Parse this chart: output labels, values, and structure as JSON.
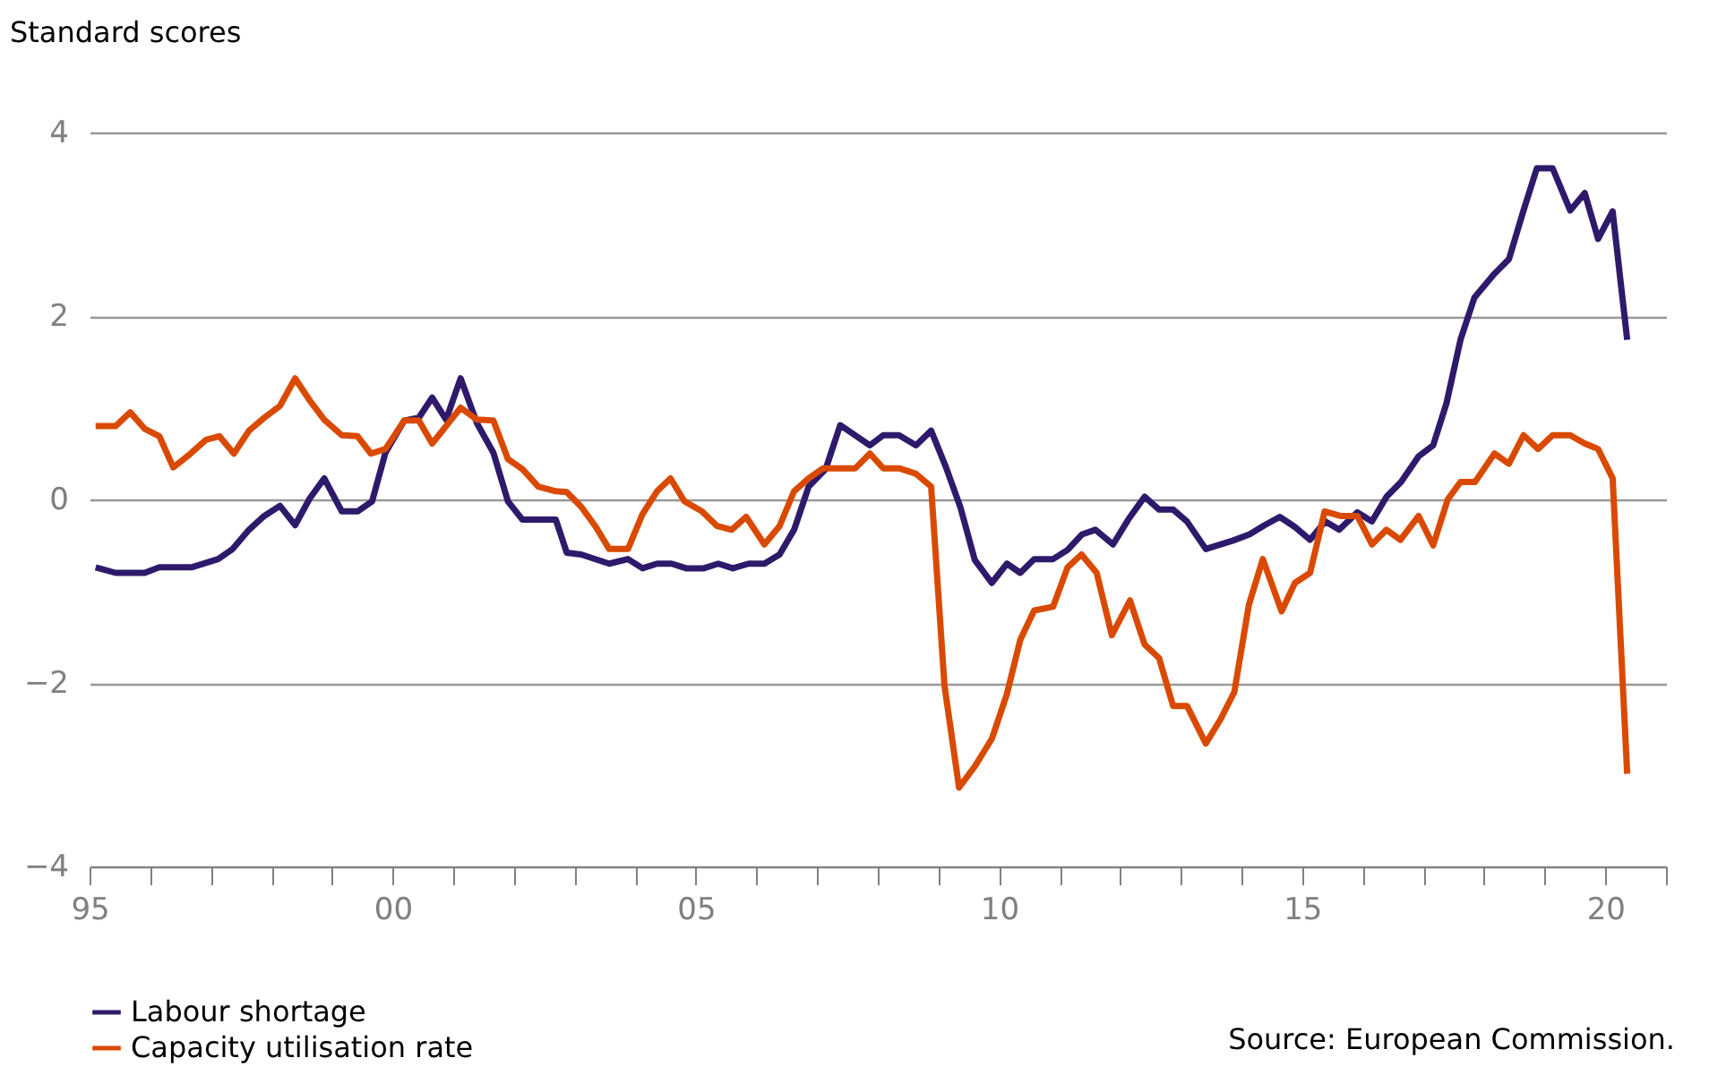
{
  "chart_data": {
    "type": "line",
    "ylabel": "Standard scores",
    "xlim": [
      1995,
      2021
    ],
    "xticks": [
      {
        "value": 1995,
        "label": "95"
      },
      {
        "value": 1996,
        "label": null
      },
      {
        "value": 1997,
        "label": null
      },
      {
        "value": 1998,
        "label": null
      },
      {
        "value": 1999,
        "label": null
      },
      {
        "value": 2000,
        "label": "00"
      },
      {
        "value": 2001,
        "label": null
      },
      {
        "value": 2002,
        "label": null
      },
      {
        "value": 2003,
        "label": null
      },
      {
        "value": 2004,
        "label": null
      },
      {
        "value": 2005,
        "label": "05"
      },
      {
        "value": 2006,
        "label": null
      },
      {
        "value": 2007,
        "label": null
      },
      {
        "value": 2008,
        "label": null
      },
      {
        "value": 2009,
        "label": null
      },
      {
        "value": 2010,
        "label": "10"
      },
      {
        "value": 2011,
        "label": null
      },
      {
        "value": 2012,
        "label": null
      },
      {
        "value": 2013,
        "label": null
      },
      {
        "value": 2014,
        "label": null
      },
      {
        "value": 2015,
        "label": "15"
      },
      {
        "value": 2016,
        "label": null
      },
      {
        "value": 2017,
        "label": null
      },
      {
        "value": 2018,
        "label": null
      },
      {
        "value": 2019,
        "label": null
      },
      {
        "value": 2020,
        "label": "20"
      },
      {
        "value": 2021,
        "label": null
      }
    ],
    "ylim": [
      -4,
      4
    ],
    "yticks": [
      -4,
      -2,
      0,
      2,
      4
    ],
    "grid": "y",
    "legend": "bottom",
    "line_style": "solid",
    "marker": "none",
    "annotations": [
      "Source: European Commission."
    ],
    "series": [
      {
        "name": "Labour shortage",
        "color": "#2e1a6b",
        "x": [
          1995.1,
          1995.43,
          1995.91,
          1996.15,
          1996.68,
          1997.12,
          1997.36,
          1997.63,
          1997.88,
          1998.14,
          1998.39,
          1998.63,
          1998.87,
          1999.16,
          1999.42,
          1999.66,
          1999.88,
          2000.19,
          2000.43,
          2000.65,
          2000.88,
          2001.12,
          2001.39,
          2001.66,
          2001.9,
          2002.14,
          2002.69,
          2002.87,
          2003.11,
          2003.57,
          2003.88,
          2004.12,
          2004.36,
          2004.6,
          2004.84,
          2005.13,
          2005.37,
          2005.61,
          2005.87,
          2006.13,
          2006.38,
          2006.62,
          2006.86,
          2007.14,
          2007.38,
          2007.87,
          2008.09,
          2008.35,
          2008.63,
          2008.88,
          2009.12,
          2009.36,
          2009.6,
          2009.88,
          2010.13,
          2010.35,
          2010.58,
          2010.89,
          2011.13,
          2011.37,
          2011.59,
          2011.88,
          2012.13,
          2012.4,
          2012.64,
          2012.87,
          2013.1,
          2013.41,
          2013.85,
          2014.13,
          2014.38,
          2014.63,
          2014.88,
          2015.13,
          2015.38,
          2015.61,
          2015.91,
          2016.15,
          2016.39,
          2016.63,
          2016.92,
          2017.16,
          2017.38,
          2017.61,
          2017.84,
          2018.17,
          2018.41,
          2018.65,
          2018.87,
          2019.13,
          2019.42,
          2019.66,
          2019.88,
          2020.12,
          2020.36
        ],
        "values": [
          -0.74,
          -0.8,
          -0.8,
          -0.74,
          -0.74,
          -0.65,
          -0.54,
          -0.33,
          -0.18,
          -0.07,
          -0.28,
          0.01,
          0.23,
          -0.13,
          -0.13,
          -0.02,
          0.51,
          0.86,
          0.89,
          1.11,
          0.87,
          1.32,
          0.83,
          0.51,
          -0.02,
          -0.22,
          -0.22,
          -0.58,
          -0.6,
          -0.7,
          -0.65,
          -0.75,
          -0.7,
          -0.7,
          -0.75,
          -0.75,
          -0.7,
          -0.75,
          -0.7,
          -0.7,
          -0.6,
          -0.33,
          0.14,
          0.33,
          0.81,
          0.59,
          0.7,
          0.7,
          0.59,
          0.75,
          0.36,
          -0.08,
          -0.66,
          -0.91,
          -0.7,
          -0.8,
          -0.65,
          -0.65,
          -0.55,
          -0.38,
          -0.33,
          -0.49,
          -0.22,
          0.03,
          -0.11,
          -0.11,
          -0.24,
          -0.54,
          -0.45,
          -0.38,
          -0.28,
          -0.19,
          -0.3,
          -0.44,
          -0.24,
          -0.33,
          -0.14,
          -0.24,
          0.03,
          0.19,
          0.47,
          0.59,
          1.05,
          1.74,
          2.2,
          2.46,
          2.62,
          3.15,
          3.61,
          3.61,
          3.15,
          3.34,
          2.84,
          3.14,
          1.74
        ]
      },
      {
        "name": "Capacity utilisation rate",
        "color": "#d94a00",
        "x": [
          1995.1,
          1995.43,
          1995.67,
          1995.91,
          1996.15,
          1996.38,
          1996.63,
          1996.92,
          1997.14,
          1997.38,
          1997.63,
          1997.88,
          1998.14,
          1998.39,
          1998.63,
          1998.87,
          1999.16,
          1999.42,
          1999.64,
          1999.88,
          2000.19,
          2000.43,
          2000.65,
          2000.88,
          2001.12,
          2001.39,
          2001.66,
          2001.9,
          2002.14,
          2002.4,
          2002.69,
          2002.87,
          2003.11,
          2003.35,
          2003.57,
          2003.88,
          2004.12,
          2004.36,
          2004.58,
          2004.81,
          2005.1,
          2005.35,
          2005.59,
          2005.83,
          2006.13,
          2006.38,
          2006.62,
          2006.86,
          2007.1,
          2007.63,
          2007.87,
          2008.09,
          2008.35,
          2008.63,
          2008.88,
          2009.1,
          2009.34,
          2009.6,
          2009.88,
          2010.13,
          2010.35,
          2010.58,
          2010.89,
          2011.13,
          2011.36,
          2011.61,
          2011.86,
          2012.16,
          2012.4,
          2012.64,
          2012.87,
          2013.1,
          2013.41,
          2013.65,
          2013.88,
          2014.12,
          2014.35,
          2014.66,
          2014.88,
          2015.13,
          2015.37,
          2015.63,
          2015.91,
          2016.15,
          2016.39,
          2016.62,
          2016.92,
          2017.16,
          2017.4,
          2017.61,
          2017.85,
          2018.17,
          2018.41,
          2018.65,
          2018.89,
          2019.13,
          2019.42,
          2019.66,
          2019.88,
          2020.12,
          2020.36
        ],
        "values": [
          0.8,
          0.8,
          0.95,
          0.77,
          0.69,
          0.35,
          0.48,
          0.65,
          0.69,
          0.5,
          0.75,
          0.89,
          1.02,
          1.32,
          1.08,
          0.87,
          0.7,
          0.69,
          0.5,
          0.55,
          0.86,
          0.86,
          0.61,
          0.8,
          1.0,
          0.87,
          0.86,
          0.44,
          0.33,
          0.14,
          0.09,
          0.08,
          -0.08,
          -0.3,
          -0.54,
          -0.54,
          -0.16,
          0.09,
          0.23,
          -0.02,
          -0.13,
          -0.29,
          -0.33,
          -0.19,
          -0.49,
          -0.29,
          0.09,
          0.23,
          0.34,
          0.34,
          0.5,
          0.34,
          0.34,
          0.28,
          0.14,
          -2.03,
          -3.14,
          -2.91,
          -2.61,
          -2.12,
          -1.53,
          -1.21,
          -1.17,
          -0.74,
          -0.6,
          -0.8,
          -1.48,
          -1.1,
          -1.58,
          -1.73,
          -2.25,
          -2.25,
          -2.66,
          -2.4,
          -2.1,
          -1.15,
          -0.65,
          -1.22,
          -0.91,
          -0.8,
          -0.13,
          -0.18,
          -0.18,
          -0.49,
          -0.33,
          -0.44,
          -0.18,
          -0.5,
          0.0,
          0.19,
          0.19,
          0.5,
          0.39,
          0.7,
          0.55,
          0.7,
          0.7,
          0.61,
          0.55,
          0.23,
          -2.99
        ]
      }
    ]
  }
}
